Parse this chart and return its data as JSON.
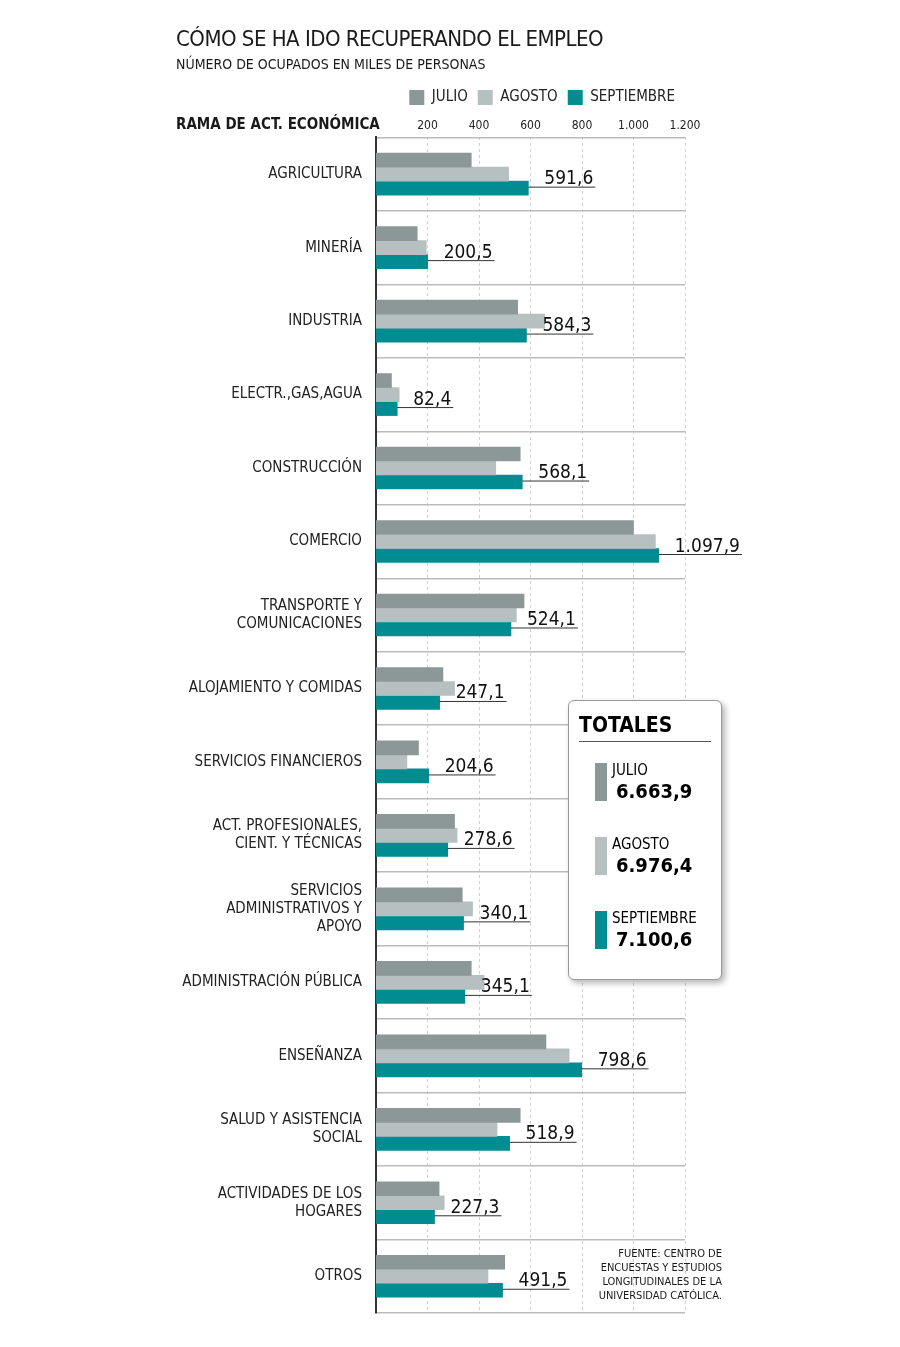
{
  "chart_data": {
    "type": "bar",
    "orientation": "horizontal",
    "title": "CÓMO SE HA IDO RECUPERANDO EL EMPLEO",
    "subtitle": "NÚMERO DE OCUPADOS EN MILES DE PERSONAS",
    "ylabel": "RAMA DE ACT. ECONÓMICA",
    "categories": [
      "AGRICULTURA",
      "MINERÍA",
      "INDUSTRIA",
      "ELECTR.,GAS,AGUA",
      "CONSTRUCCIÓN",
      "COMERCIO",
      "TRANSPORTE Y COMUNICACIONES",
      "ALOJAMIENTO Y COMIDAS",
      "SERVICIOS FINANCIEROS",
      "ACT. PROFESIONALES, CIENT. Y TÉCNICAS",
      "SERVICIOS ADMINISTRATIVOS Y APOYO",
      "ADMINISTRACIÓN PÚBLICA",
      "ENSEÑANZA",
      "SALUD Y ASISTENCIA SOCIAL",
      "ACTIVIDADES DE LOS HOGARES",
      "OTROS"
    ],
    "series": [
      {
        "name": "JULIO",
        "color": "#8c9798",
        "values": [
          370,
          160,
          550,
          60,
          560,
          1000,
          575,
          260,
          165,
          305,
          335,
          370,
          660,
          560,
          245,
          500
        ]
      },
      {
        "name": "AGOSTO",
        "color": "#b7c0c0",
        "values": [
          515,
          195,
          655,
          90,
          465,
          1085,
          545,
          305,
          120,
          315,
          375,
          420,
          750,
          470,
          265,
          435
        ]
      },
      {
        "name": "SEPTIEMBRE",
        "color": "#008c91",
        "values": [
          591.6,
          200.5,
          584.3,
          82.4,
          568.1,
          1097.9,
          524.1,
          247.1,
          204.6,
          278.6,
          340.1,
          345.1,
          798.6,
          518.9,
          227.3,
          491.5
        ],
        "value_labels": [
          "591,6",
          "200,5",
          "584,3",
          "82,4",
          "568,1",
          "1.097,9",
          "524,1",
          "247,1",
          "204,6",
          "278,6",
          "340,1",
          "345,1",
          "798,6",
          "518,9",
          "227,3",
          "491,5"
        ]
      }
    ],
    "xlim": [
      0,
      1200
    ],
    "xticks": [
      {
        "value": 200,
        "label": "200"
      },
      {
        "value": 400,
        "label": "400"
      },
      {
        "value": 600,
        "label": "600"
      },
      {
        "value": 800,
        "label": "800"
      },
      {
        "value": 1000,
        "label": "1.000"
      },
      {
        "value": 1200,
        "label": "1.200"
      }
    ],
    "grid": true,
    "legend": "top right",
    "annotations": [
      "TOTALES",
      "6.663,9",
      "6.976,4",
      "7.100,6",
      "FUENTE: CENTRO DE ENCUESTAS Y ESTUDIOS LONGITUDINALES DE LA UNIVERSIDAD CATÓLICA."
    ]
  }
}
